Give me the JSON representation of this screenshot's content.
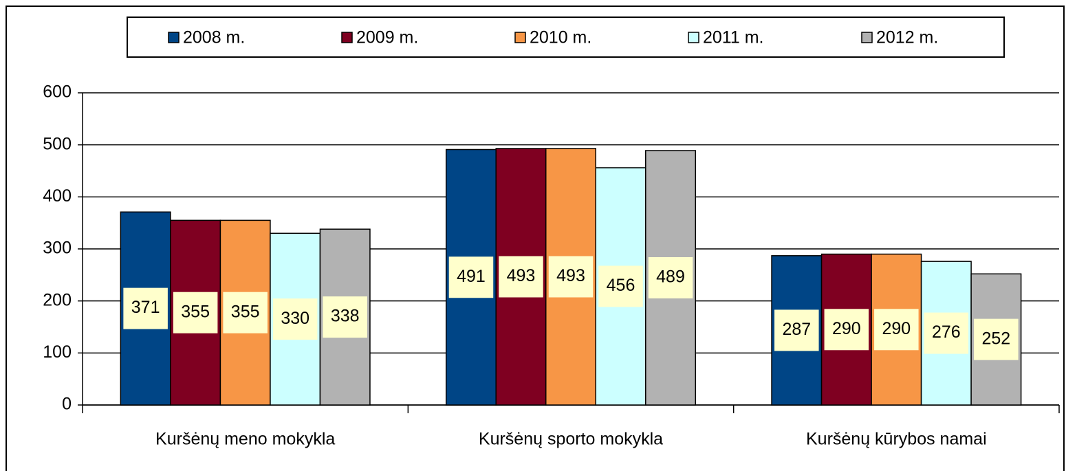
{
  "chart_data": {
    "type": "bar",
    "categories": [
      "Kuršėnų meno mokykla",
      "Kuršėnų sporto mokykla",
      "Kuršėnų kūrybos namai"
    ],
    "series": [
      {
        "name": "2008 m.",
        "color": "#004586",
        "values": [
          371,
          491,
          287
        ]
      },
      {
        "name": "2009 m.",
        "color": "#7f0021",
        "values": [
          355,
          493,
          290
        ]
      },
      {
        "name": "2010 m.",
        "color": "#f79646",
        "values": [
          355,
          493,
          290
        ]
      },
      {
        "name": "2011 m.",
        "color": "#ccffff",
        "values": [
          330,
          456,
          276
        ]
      },
      {
        "name": "2012 m.",
        "color": "#b2b2b2",
        "values": [
          338,
          489,
          252
        ]
      }
    ],
    "ylim": [
      0,
      600
    ],
    "yticks": [
      0,
      100,
      200,
      300,
      400,
      500,
      600
    ],
    "grid": true,
    "legend": "top"
  }
}
